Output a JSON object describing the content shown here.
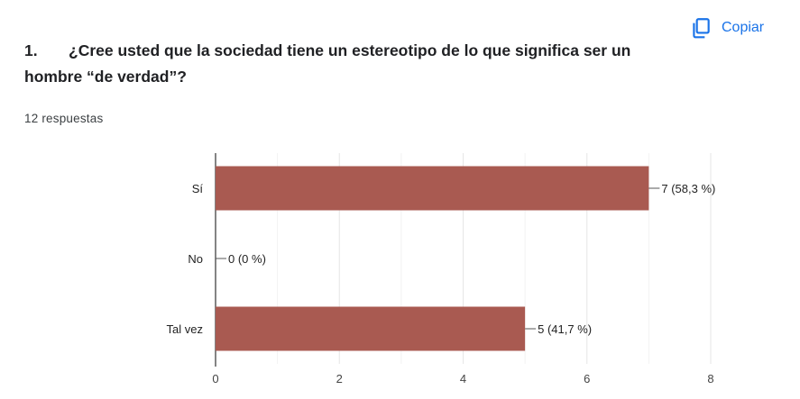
{
  "copy_button": {
    "label": "Copiar",
    "icon": "copy-icon",
    "color": "#1a73e8"
  },
  "question": {
    "number": "1.",
    "text": "¿Cree usted que la sociedad tiene un estereotipo de lo que significa ser un hombre “de verdad”?"
  },
  "responses_label": "12 respuestas",
  "chart_data": {
    "type": "bar",
    "orientation": "horizontal",
    "categories": [
      "Sí",
      "No",
      "Tal vez"
    ],
    "values": [
      7,
      0,
      5
    ],
    "data_labels": [
      "7 (58,3 %)",
      "0 (0 %)",
      "5 (41,7 %)"
    ],
    "xlim": [
      0,
      8
    ],
    "xticks": [
      0,
      2,
      4,
      6,
      8
    ],
    "grid": true,
    "bar_color": "#a95a51"
  }
}
